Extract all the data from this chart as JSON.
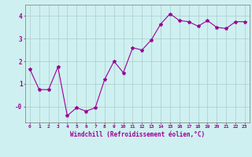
{
  "x": [
    0,
    1,
    2,
    3,
    4,
    5,
    6,
    7,
    8,
    9,
    10,
    11,
    12,
    13,
    14,
    15,
    16,
    17,
    18,
    19,
    20,
    21,
    22,
    23
  ],
  "y": [
    1.65,
    0.75,
    0.75,
    1.75,
    -0.4,
    -0.05,
    -0.2,
    -0.05,
    1.2,
    2.0,
    1.5,
    2.6,
    2.5,
    2.95,
    3.65,
    4.1,
    3.8,
    3.75,
    3.55,
    3.8,
    3.5,
    3.45,
    3.75,
    3.75
  ],
  "line_color": "#990099",
  "marker": "*",
  "marker_size": 3,
  "bg_color": "#cff0f0",
  "grid_color": "#aacccc",
  "xlabel": "Windchill (Refroidissement éolien,°C)",
  "xlabel_color": "#990099",
  "tick_color": "#990099",
  "ylim": [
    -0.7,
    4.5
  ],
  "ytick_labels": [
    "-0",
    "1",
    "2",
    "3",
    "4"
  ],
  "ytick_vals": [
    0,
    1,
    2,
    3,
    4
  ]
}
